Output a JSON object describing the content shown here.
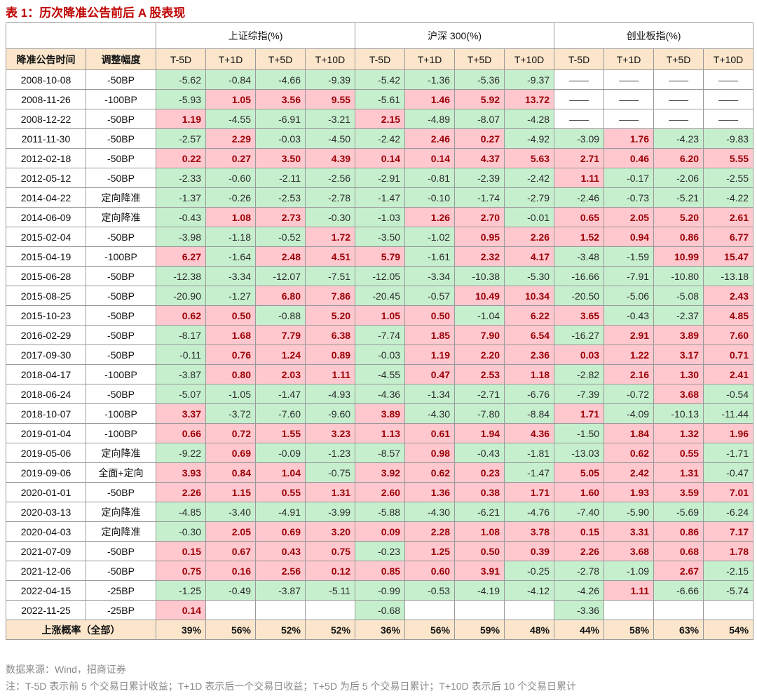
{
  "title": "表 1：历次降准公告前后 A 股表现",
  "table": {
    "groups": [
      "上证综指(%)",
      "沪深 300(%)",
      "创业板指(%)"
    ],
    "columns": [
      "降准公告时间",
      "调整幅度",
      "T-5D",
      "T+1D",
      "T+5D",
      "T+10D",
      "T-5D",
      "T+1D",
      "T+5D",
      "T+10D",
      "T-5D",
      "T+1D",
      "T+5D",
      "T+10D"
    ],
    "rows": [
      {
        "date": "2008-10-08",
        "adjustment": "-50BP",
        "values": [
          "-5.62",
          "-0.84",
          "-4.66",
          "-9.39",
          "-5.42",
          "-1.36",
          "-5.36",
          "-9.37",
          "——",
          "——",
          "——",
          "——"
        ]
      },
      {
        "date": "2008-11-26",
        "adjustment": "-100BP",
        "values": [
          "-5.93",
          "1.05",
          "3.56",
          "9.55",
          "-5.61",
          "1.46",
          "5.92",
          "13.72",
          "——",
          "——",
          "——",
          "——"
        ]
      },
      {
        "date": "2008-12-22",
        "adjustment": "-50BP",
        "values": [
          "1.19",
          "-4.55",
          "-6.91",
          "-3.21",
          "2.15",
          "-4.89",
          "-8.07",
          "-4.28",
          "——",
          "——",
          "——",
          "——"
        ]
      },
      {
        "date": "2011-11-30",
        "adjustment": "-50BP",
        "values": [
          "-2.57",
          "2.29",
          "-0.03",
          "-4.50",
          "-2.42",
          "2.46",
          "0.27",
          "-4.92",
          "-3.09",
          "1.76",
          "-4.23",
          "-9.83"
        ]
      },
      {
        "date": "2012-02-18",
        "adjustment": "-50BP",
        "values": [
          "0.22",
          "0.27",
          "3.50",
          "4.39",
          "0.14",
          "0.14",
          "4.37",
          "5.63",
          "2.71",
          "0.46",
          "6.20",
          "5.55"
        ]
      },
      {
        "date": "2012-05-12",
        "adjustment": "-50BP",
        "values": [
          "-2.33",
          "-0.60",
          "-2.11",
          "-2.56",
          "-2.91",
          "-0.81",
          "-2.39",
          "-2.42",
          "1.11",
          "-0.17",
          "-2.06",
          "-2.55"
        ]
      },
      {
        "date": "2014-04-22",
        "adjustment": "定向降准",
        "values": [
          "-1.37",
          "-0.26",
          "-2.53",
          "-2.78",
          "-1.47",
          "-0.10",
          "-1.74",
          "-2.79",
          "-2.46",
          "-0.73",
          "-5.21",
          "-4.22"
        ]
      },
      {
        "date": "2014-06-09",
        "adjustment": "定向降准",
        "values": [
          "-0.43",
          "1.08",
          "2.73",
          "-0.30",
          "-1.03",
          "1.26",
          "2.70",
          "-0.01",
          "0.65",
          "2.05",
          "5.20",
          "2.61"
        ]
      },
      {
        "date": "2015-02-04",
        "adjustment": "-50BP",
        "values": [
          "-3.98",
          "-1.18",
          "-0.52",
          "1.72",
          "-3.50",
          "-1.02",
          "0.95",
          "2.26",
          "1.52",
          "0.94",
          "0.86",
          "6.77"
        ]
      },
      {
        "date": "2015-04-19",
        "adjustment": "-100BP",
        "values": [
          "6.27",
          "-1.64",
          "2.48",
          "4.51",
          "5.79",
          "-1.61",
          "2.32",
          "4.17",
          "-3.48",
          "-1.59",
          "10.99",
          "15.47"
        ]
      },
      {
        "date": "2015-06-28",
        "adjustment": "-50BP",
        "values": [
          "-12.38",
          "-3.34",
          "-12.07",
          "-7.51",
          "-12.05",
          "-3.34",
          "-10.38",
          "-5.30",
          "-16.66",
          "-7.91",
          "-10.80",
          "-13.18"
        ]
      },
      {
        "date": "2015-08-25",
        "adjustment": "-50BP",
        "values": [
          "-20.90",
          "-1.27",
          "6.80",
          "7.86",
          "-20.45",
          "-0.57",
          "10.49",
          "10.34",
          "-20.50",
          "-5.06",
          "-5.08",
          "2.43"
        ]
      },
      {
        "date": "2015-10-23",
        "adjustment": "-50BP",
        "values": [
          "0.62",
          "0.50",
          "-0.88",
          "5.20",
          "1.05",
          "0.50",
          "-1.04",
          "6.22",
          "3.65",
          "-0.43",
          "-2.37",
          "4.85"
        ]
      },
      {
        "date": "2016-02-29",
        "adjustment": "-50BP",
        "values": [
          "-8.17",
          "1.68",
          "7.79",
          "6.38",
          "-7.74",
          "1.85",
          "7.90",
          "6.54",
          "-16.27",
          "2.91",
          "3.89",
          "7.60"
        ]
      },
      {
        "date": "2017-09-30",
        "adjustment": "-50BP",
        "values": [
          "-0.11",
          "0.76",
          "1.24",
          "0.89",
          "-0.03",
          "1.19",
          "2.20",
          "2.36",
          "0.03",
          "1.22",
          "3.17",
          "0.71"
        ]
      },
      {
        "date": "2018-04-17",
        "adjustment": "-100BP",
        "values": [
          "-3.87",
          "0.80",
          "2.03",
          "1.11",
          "-4.55",
          "0.47",
          "2.53",
          "1.18",
          "-2.82",
          "2.16",
          "1.30",
          "2.41"
        ]
      },
      {
        "date": "2018-06-24",
        "adjustment": "-50BP",
        "values": [
          "-5.07",
          "-1.05",
          "-1.47",
          "-4.93",
          "-4.36",
          "-1.34",
          "-2.71",
          "-6.76",
          "-7.39",
          "-0.72",
          "3.68",
          "-0.54"
        ]
      },
      {
        "date": "2018-10-07",
        "adjustment": "-100BP",
        "values": [
          "3.37",
          "-3.72",
          "-7.60",
          "-9.60",
          "3.89",
          "-4.30",
          "-7.80",
          "-8.84",
          "1.71",
          "-4.09",
          "-10.13",
          "-11.44"
        ]
      },
      {
        "date": "2019-01-04",
        "adjustment": "-100BP",
        "values": [
          "0.66",
          "0.72",
          "1.55",
          "3.23",
          "1.13",
          "0.61",
          "1.94",
          "4.36",
          "-1.50",
          "1.84",
          "1.32",
          "1.96"
        ]
      },
      {
        "date": "2019-05-06",
        "adjustment": "定向降准",
        "values": [
          "-9.22",
          "0.69",
          "-0.09",
          "-1.23",
          "-8.57",
          "0.98",
          "-0.43",
          "-1.81",
          "-13.03",
          "0.62",
          "0.55",
          "-1.71"
        ]
      },
      {
        "date": "2019-09-06",
        "adjustment": "全面+定向",
        "values": [
          "3.93",
          "0.84",
          "1.04",
          "-0.75",
          "3.92",
          "0.62",
          "0.23",
          "-1.47",
          "5.05",
          "2.42",
          "1.31",
          "-0.47"
        ]
      },
      {
        "date": "2020-01-01",
        "adjustment": "-50BP",
        "values": [
          "2.26",
          "1.15",
          "0.55",
          "1.31",
          "2.60",
          "1.36",
          "0.38",
          "1.71",
          "1.60",
          "1.93",
          "3.59",
          "7.01"
        ]
      },
      {
        "date": "2020-03-13",
        "adjustment": "定向降准",
        "values": [
          "-4.85",
          "-3.40",
          "-4.91",
          "-3.99",
          "-5.88",
          "-4.30",
          "-6.21",
          "-4.76",
          "-7.40",
          "-5.90",
          "-5.69",
          "-6.24"
        ]
      },
      {
        "date": "2020-04-03",
        "adjustment": "定向降准",
        "values": [
          "-0.30",
          "2.05",
          "0.69",
          "3.20",
          "0.09",
          "2.28",
          "1.08",
          "3.78",
          "0.15",
          "3.31",
          "0.86",
          "7.17"
        ]
      },
      {
        "date": "2021-07-09",
        "adjustment": "-50BP",
        "values": [
          "0.15",
          "0.67",
          "0.43",
          "0.75",
          "-0.23",
          "1.25",
          "0.50",
          "0.39",
          "2.26",
          "3.68",
          "0.68",
          "1.78"
        ]
      },
      {
        "date": "2021-12-06",
        "adjustment": "-50BP",
        "values": [
          "0.75",
          "0.16",
          "2.56",
          "0.12",
          "0.85",
          "0.60",
          "3.91",
          "-0.25",
          "-2.78",
          "-1.09",
          "2.67",
          "-2.15"
        ]
      },
      {
        "date": "2022-04-15",
        "adjustment": "-25BP",
        "values": [
          "-1.25",
          "-0.49",
          "-3.87",
          "-5.11",
          "-0.99",
          "-0.53",
          "-4.19",
          "-4.12",
          "-4.26",
          "1.11",
          "-6.66",
          "-5.74"
        ]
      },
      {
        "date": "2022-11-25",
        "adjustment": "-25BP",
        "values": [
          "0.14",
          null,
          null,
          null,
          "-0.68",
          null,
          null,
          null,
          "-3.36",
          null,
          null,
          null
        ]
      }
    ],
    "summary": {
      "label": "上涨概率（全部）",
      "values": [
        "39%",
        "56%",
        "52%",
        "52%",
        "36%",
        "56%",
        "59%",
        "48%",
        "44%",
        "58%",
        "63%",
        "54%"
      ]
    }
  },
  "notes": [
    "数据来源：Wind，招商证券",
    "注：T-5D 表示前 5 个交易日累计收益；T+1D 表示后一个交易日收益；T+5D 为后 5 个交易日累计；T+10D 表示后 10 个交易日累计"
  ]
}
